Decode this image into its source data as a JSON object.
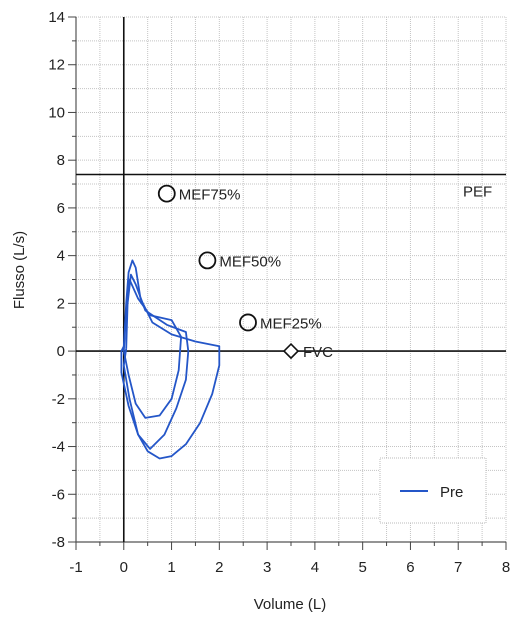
{
  "chart_data": {
    "type": "line",
    "title": "",
    "xlabel": "Volume (L)",
    "ylabel": "Flusso (L/s)",
    "xlim": [
      -1,
      8
    ],
    "ylim": [
      -8,
      14
    ],
    "grid": true,
    "x_ticks": [
      -1,
      0,
      1,
      2,
      3,
      4,
      5,
      6,
      7,
      8
    ],
    "y_ticks": [
      -8,
      -6,
      -4,
      -2,
      0,
      2,
      4,
      6,
      8,
      10,
      12,
      14
    ],
    "legend_position": "bottom-right",
    "pef_line": {
      "label": "PEF",
      "y": 7.4
    },
    "markers": [
      {
        "label": "MEF75%",
        "x": 0.9,
        "y": 6.6,
        "shape": "circle"
      },
      {
        "label": "MEF50%",
        "x": 1.75,
        "y": 3.8,
        "shape": "circle"
      },
      {
        "label": "MEF25%",
        "x": 2.6,
        "y": 1.2,
        "shape": "circle"
      },
      {
        "label": "FVC",
        "x": 3.5,
        "y": 0.0,
        "shape": "diamond"
      }
    ],
    "series": [
      {
        "name": "Pre",
        "color": "#2456c8",
        "loops": [
          [
            [
              0.0,
              0.2
            ],
            [
              0.05,
              2.0
            ],
            [
              0.1,
              3.3
            ],
            [
              0.18,
              3.8
            ],
            [
              0.25,
              3.5
            ],
            [
              0.35,
              2.2
            ],
            [
              0.6,
              1.2
            ],
            [
              1.0,
              0.7
            ],
            [
              1.5,
              0.4
            ],
            [
              2.0,
              0.2
            ],
            [
              2.0,
              -0.6
            ],
            [
              1.85,
              -1.8
            ],
            [
              1.6,
              -3.0
            ],
            [
              1.3,
              -3.9
            ],
            [
              1.0,
              -4.4
            ],
            [
              0.75,
              -4.5
            ],
            [
              0.5,
              -4.2
            ],
            [
              0.3,
              -3.5
            ],
            [
              0.1,
              -2.3
            ],
            [
              -0.05,
              -0.9
            ],
            [
              -0.05,
              0.0
            ],
            [
              0.0,
              0.2
            ]
          ],
          [
            [
              0.05,
              0.1
            ],
            [
              0.08,
              2.0
            ],
            [
              0.15,
              3.2
            ],
            [
              0.25,
              2.8
            ],
            [
              0.45,
              1.7
            ],
            [
              0.9,
              1.1
            ],
            [
              1.3,
              0.8
            ],
            [
              1.35,
              0.0
            ],
            [
              1.3,
              -1.2
            ],
            [
              1.1,
              -2.4
            ],
            [
              0.85,
              -3.5
            ],
            [
              0.55,
              -4.1
            ],
            [
              0.3,
              -3.5
            ],
            [
              0.12,
              -2.0
            ],
            [
              0.0,
              -0.6
            ],
            [
              0.05,
              0.1
            ]
          ],
          [
            [
              0.0,
              0.0
            ],
            [
              0.05,
              1.6
            ],
            [
              0.12,
              3.0
            ],
            [
              0.3,
              2.2
            ],
            [
              0.55,
              1.5
            ],
            [
              1.0,
              1.3
            ],
            [
              1.2,
              0.6
            ],
            [
              1.15,
              -0.8
            ],
            [
              1.0,
              -2.0
            ],
            [
              0.75,
              -2.7
            ],
            [
              0.45,
              -2.8
            ],
            [
              0.25,
              -2.2
            ],
            [
              0.1,
              -1.0
            ],
            [
              0.0,
              0.0
            ]
          ]
        ]
      }
    ]
  }
}
